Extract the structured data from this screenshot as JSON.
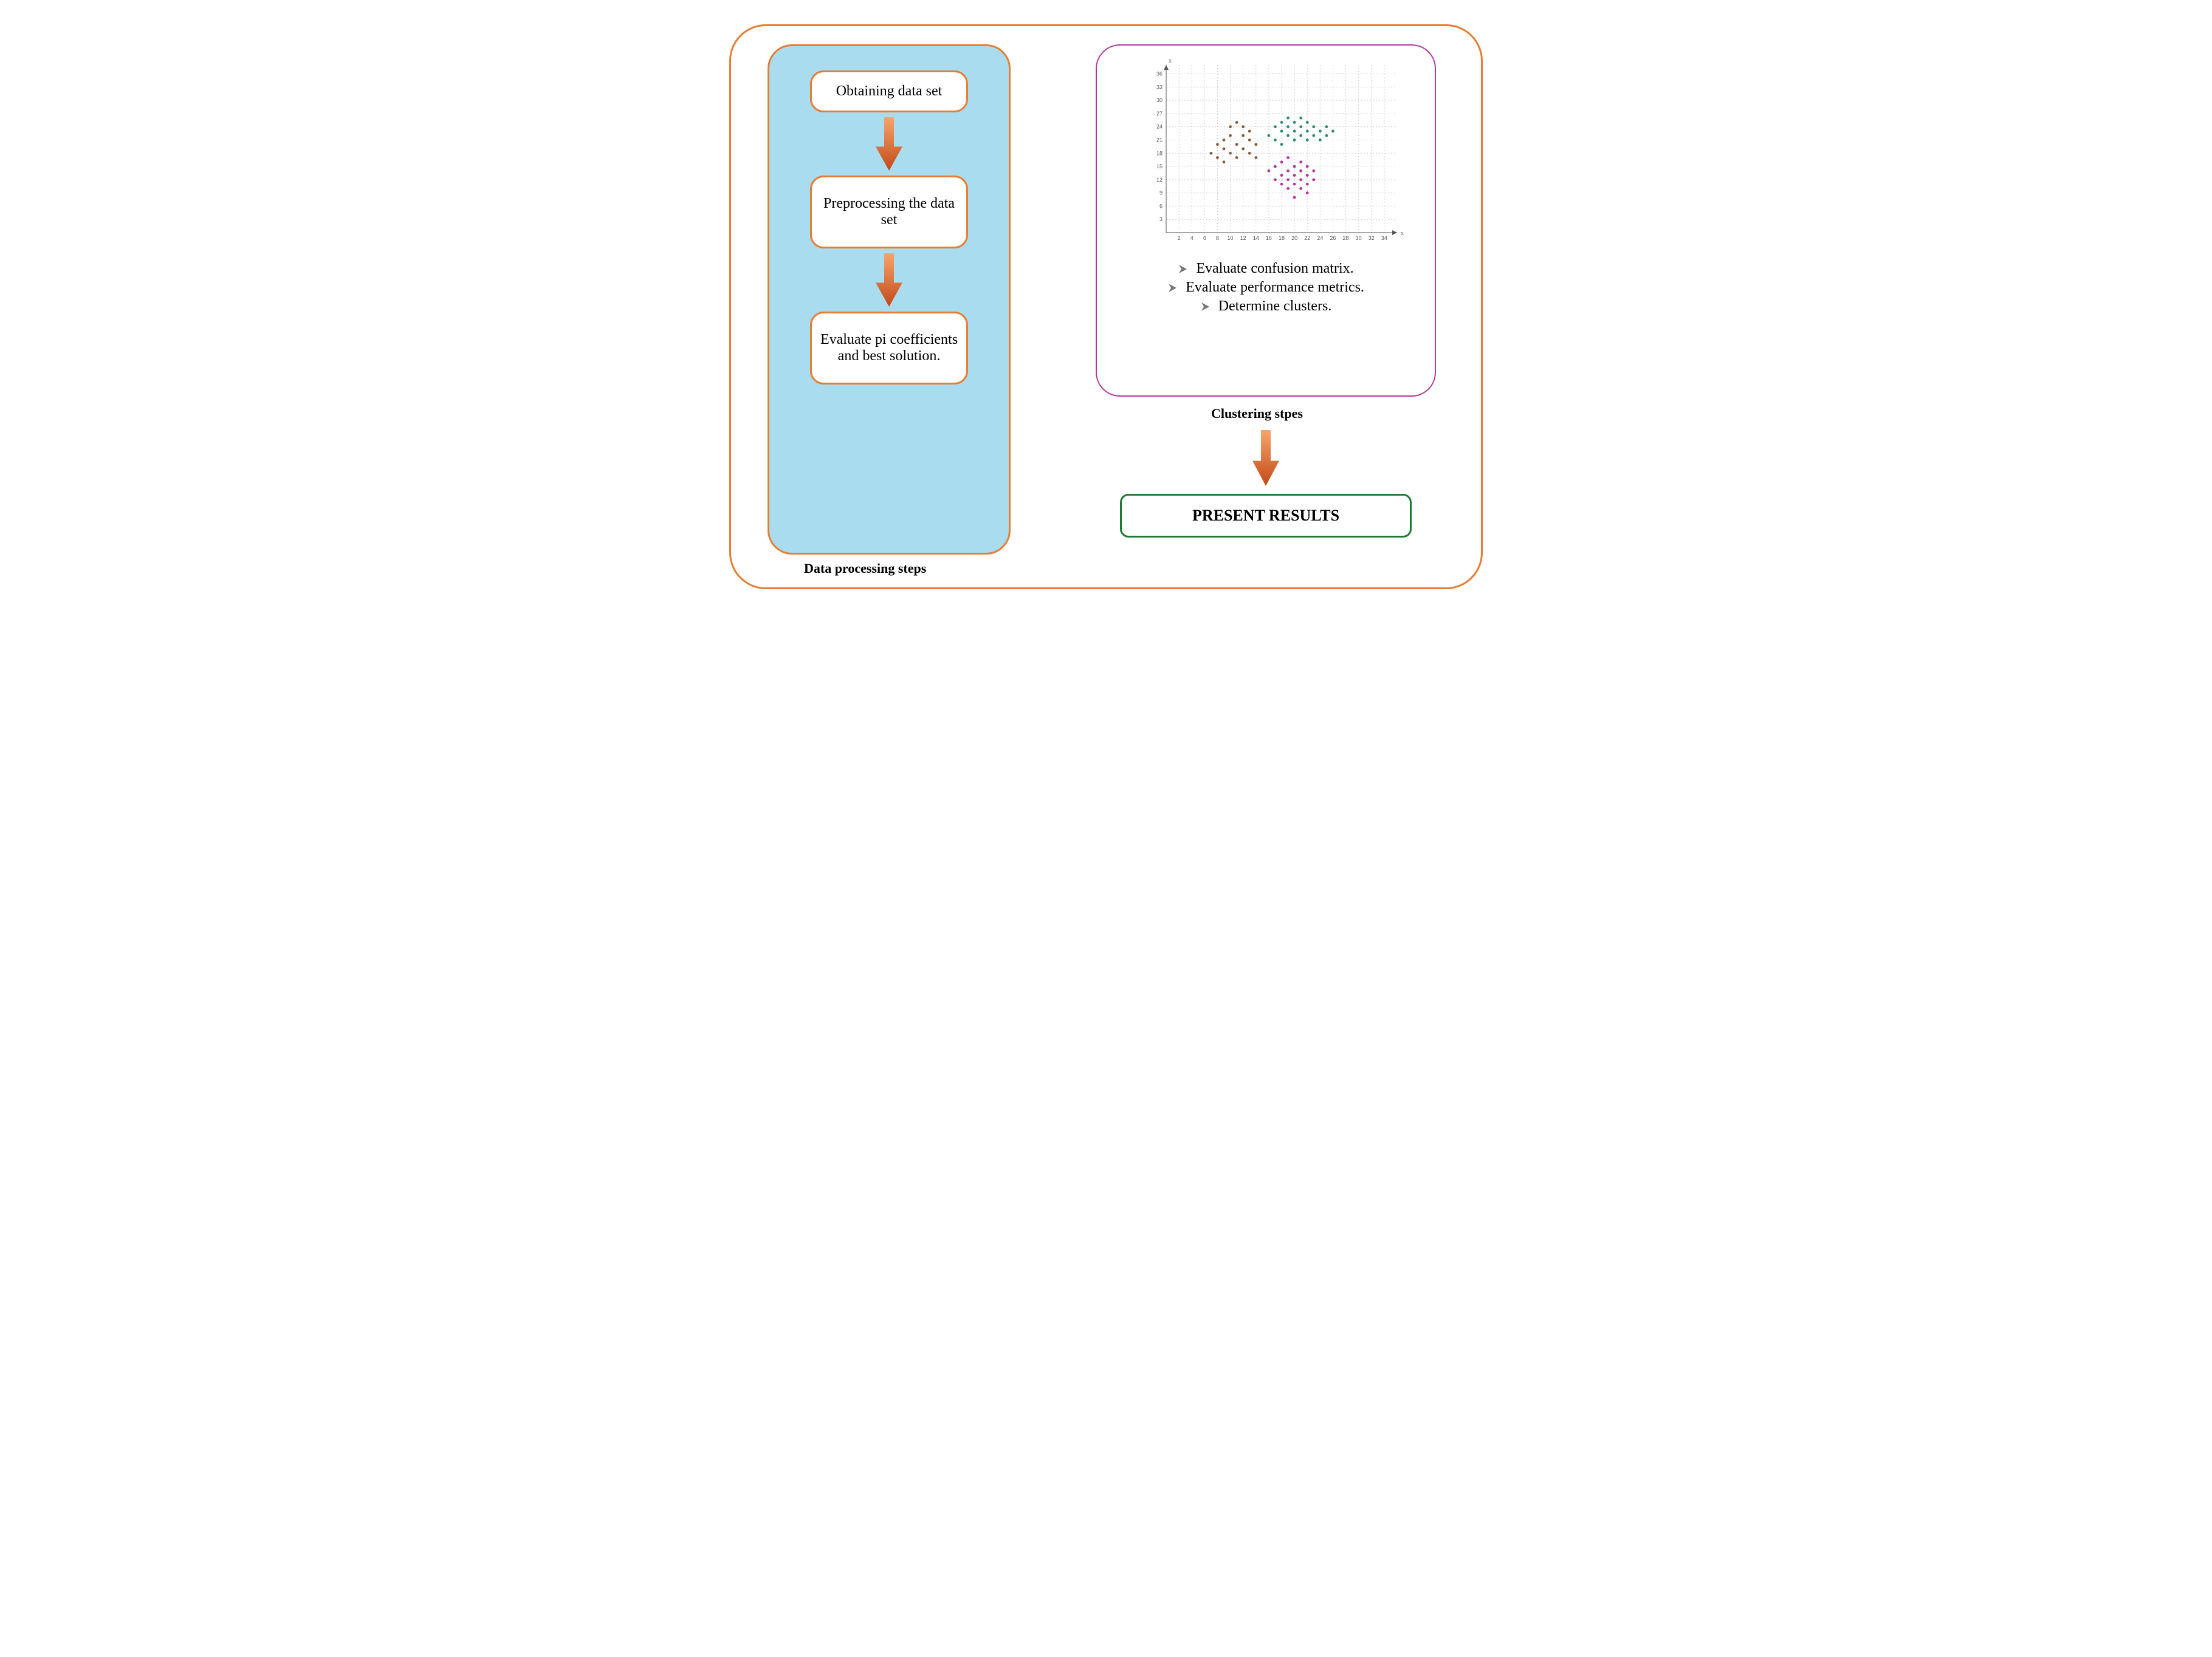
{
  "colors": {
    "outer_border": "#e77d30",
    "left_panel_bg": "#a9dcee",
    "left_panel_border": "#e77d30",
    "flow_box_border": "#e77d30",
    "right_panel_border": "#b2369d",
    "result_border": "#1f7a32",
    "arrow_top": "#f7a56a",
    "arrow_bottom": "#c24a1a",
    "grid": "#d0d0d0",
    "axis": "#555555",
    "cluster_brown": "#8a5a3a",
    "cluster_green": "#2e8b70",
    "cluster_magenta": "#b2369d",
    "bullet_chevron": "#777777"
  },
  "left": {
    "box1": "Obtaining data set",
    "box2": "Preprocessing the data set",
    "box3": "Evaluate pi coefficients and best solution.",
    "caption": "Data processing steps"
  },
  "right": {
    "bullet1": "Evaluate confusion matrix.",
    "bullet2": "Evaluate performance metrics.",
    "bullet3": "Determine clusters.",
    "caption": "Clustering stpes"
  },
  "result": "PRESENT RESULTS",
  "scatter": {
    "x_axis_label": "x",
    "y_axis_label": "x",
    "x_ticks": [
      2,
      4,
      6,
      8,
      10,
      12,
      14,
      16,
      18,
      20,
      22,
      24,
      26,
      28,
      30,
      32,
      34
    ],
    "y_ticks": [
      3,
      6,
      9,
      12,
      15,
      18,
      21,
      24,
      27,
      30,
      33,
      36
    ],
    "xlim": [
      0,
      36
    ],
    "ylim": [
      0,
      38
    ],
    "marker_radius": 2.4,
    "clusters": {
      "brown": {
        "color_key": "cluster_brown",
        "points": [
          [
            7,
            18
          ],
          [
            8,
            17
          ],
          [
            8,
            20
          ],
          [
            9,
            16
          ],
          [
            9,
            19
          ],
          [
            9,
            21
          ],
          [
            10,
            18
          ],
          [
            10,
            22
          ],
          [
            10,
            24
          ],
          [
            11,
            17
          ],
          [
            11,
            20
          ],
          [
            11,
            25
          ],
          [
            12,
            19
          ],
          [
            12,
            22
          ],
          [
            12,
            24
          ],
          [
            13,
            18
          ],
          [
            13,
            21
          ],
          [
            13,
            23
          ],
          [
            14,
            20
          ],
          [
            14,
            17
          ]
        ]
      },
      "green": {
        "color_key": "cluster_green",
        "points": [
          [
            16,
            22
          ],
          [
            17,
            21
          ],
          [
            17,
            24
          ],
          [
            18,
            20
          ],
          [
            18,
            23
          ],
          [
            18,
            25
          ],
          [
            19,
            22
          ],
          [
            19,
            24
          ],
          [
            19,
            26
          ],
          [
            20,
            21
          ],
          [
            20,
            23
          ],
          [
            20,
            25
          ],
          [
            21,
            22
          ],
          [
            21,
            24
          ],
          [
            21,
            26
          ],
          [
            22,
            21
          ],
          [
            22,
            23
          ],
          [
            22,
            25
          ],
          [
            23,
            22
          ],
          [
            23,
            24
          ],
          [
            24,
            23
          ],
          [
            24,
            21
          ],
          [
            25,
            22
          ],
          [
            25,
            24
          ],
          [
            26,
            23
          ]
        ]
      },
      "magenta": {
        "color_key": "cluster_magenta",
        "points": [
          [
            16,
            14
          ],
          [
            17,
            12
          ],
          [
            17,
            15
          ],
          [
            18,
            11
          ],
          [
            18,
            13
          ],
          [
            18,
            16
          ],
          [
            19,
            10
          ],
          [
            19,
            12
          ],
          [
            19,
            14
          ],
          [
            19,
            17
          ],
          [
            20,
            11
          ],
          [
            20,
            13
          ],
          [
            20,
            15
          ],
          [
            21,
            10
          ],
          [
            21,
            12
          ],
          [
            21,
            14
          ],
          [
            21,
            16
          ],
          [
            22,
            11
          ],
          [
            22,
            13
          ],
          [
            22,
            15
          ],
          [
            23,
            12
          ],
          [
            23,
            14
          ],
          [
            20,
            8
          ],
          [
            22,
            9
          ]
        ]
      }
    }
  }
}
